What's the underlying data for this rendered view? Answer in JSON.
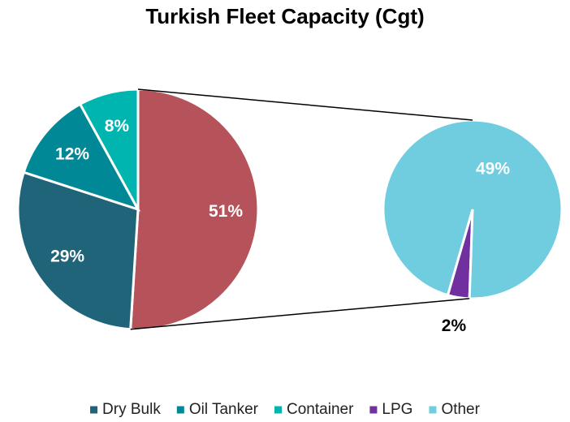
{
  "chart_data": {
    "type": "pie-of-pie",
    "title": "Turkish Fleet Capacity (Cgt)",
    "primary": {
      "categories": [
        "Dry Bulk",
        "Oil Tanker",
        "Container",
        null
      ],
      "values": [
        29,
        12,
        8,
        51
      ],
      "value_labels": [
        "29%",
        "12%",
        "8%",
        "51%"
      ],
      "colors": [
        "#1f6478",
        "#008896",
        "#00b5b0",
        "#b5525a"
      ]
    },
    "secondary": {
      "categories": [
        "LPG",
        "Other"
      ],
      "values": [
        2,
        49
      ],
      "value_labels": [
        "2%",
        "49%"
      ],
      "colors": [
        "#7030a0",
        "#70cde0"
      ]
    },
    "legend": "bottom"
  }
}
